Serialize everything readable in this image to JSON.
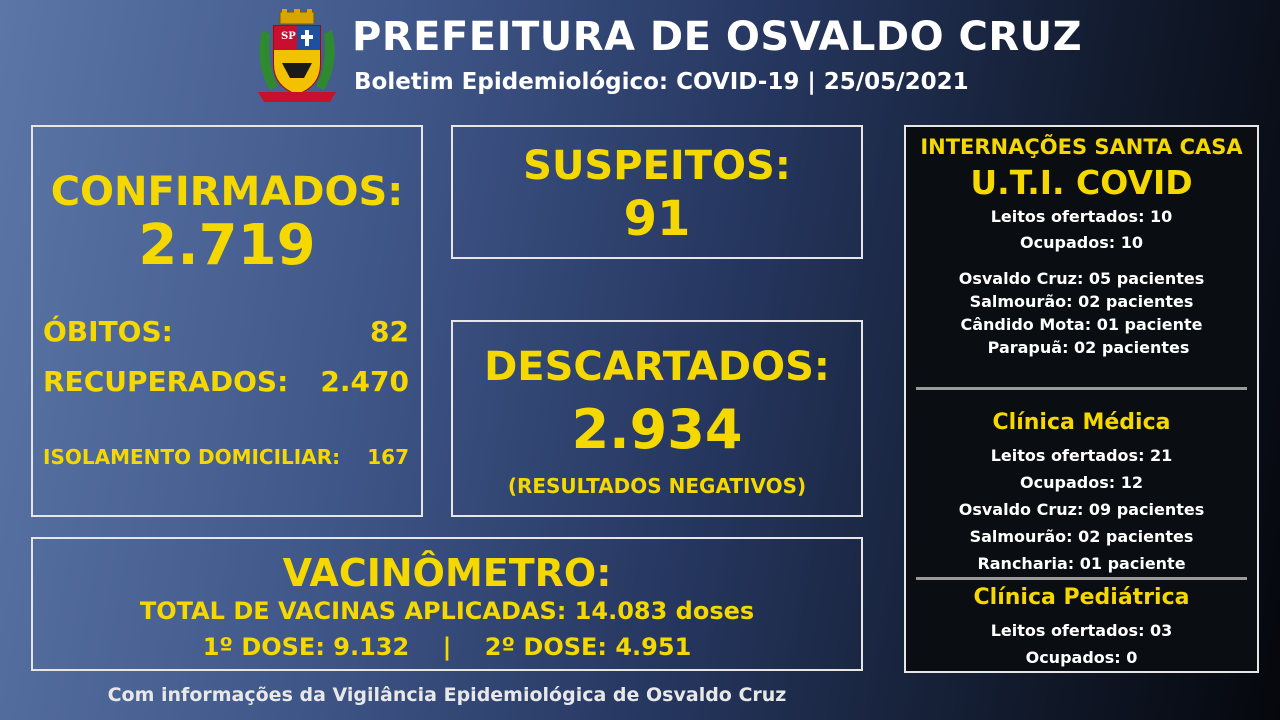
{
  "header": {
    "title": "PREFEITURA DE OSVALDO CRUZ",
    "subtitle": "Boletim Epidemiológico: COVID-19 | 25/05/2021",
    "crest_text": "SP"
  },
  "confirmed": {
    "label": "CONFIRMADOS:",
    "value": "2.719",
    "obitos_label": "ÓBITOS:",
    "obitos_value": "82",
    "recuperados_label": "RECUPERADOS:",
    "recuperados_value": "2.470",
    "isolamento_label": "ISOLAMENTO DOMICILIAR:",
    "isolamento_value": "167"
  },
  "suspeitos": {
    "label": "SUSPEITOS:",
    "value": "91"
  },
  "descartados": {
    "label": "DESCARTADOS:",
    "value": "2.934",
    "note": "(RESULTADOS NEGATIVOS)"
  },
  "vacinometro": {
    "label": "VACINÔMETRO:",
    "total": "TOTAL DE VACINAS APLICADAS: 14.083 doses",
    "doses": "1º DOSE: 9.132    |    2º DOSE: 4.951"
  },
  "footer": "Com informações da Vigilância Epidemiológica de Osvaldo Cruz",
  "right_panel": {
    "heading": "INTERNAÇÕES SANTA CASA",
    "uti": {
      "title": "U.T.I. COVID",
      "leitos": "Leitos ofertados: 10",
      "ocupados": "Ocupados: 10",
      "patients": [
        "Osvaldo Cruz: 05 pacientes",
        "Salmourão: 02 pacientes",
        "Cândido Mota: 01 paciente",
        "Parapuã: 02 pacientes"
      ]
    },
    "clinica_medica": {
      "title": "Clínica Médica",
      "leitos": "Leitos ofertados: 21",
      "ocupados": "Ocupados: 12",
      "patients": [
        "Osvaldo Cruz: 09 pacientes",
        "Salmourão: 02 pacientes",
        "Rancharia: 01 paciente"
      ]
    },
    "clinica_pediatrica": {
      "title": "Clínica Pediátrica",
      "leitos": "Leitos ofertados: 03",
      "ocupados": "Ocupados: 0"
    }
  },
  "colors": {
    "accent": "#f5d800",
    "text": "#ffffff",
    "border": "#e6e6e6"
  }
}
